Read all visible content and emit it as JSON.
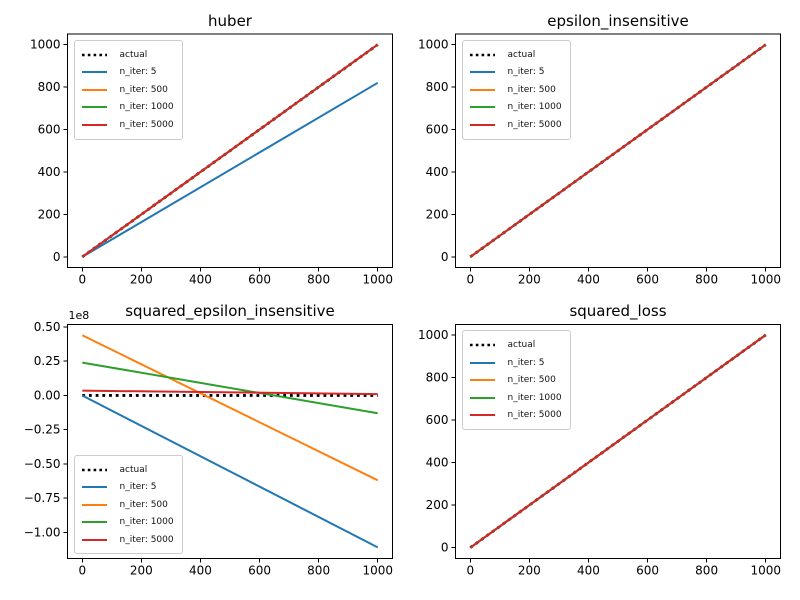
{
  "figure": {
    "background": "#ffffff"
  },
  "chart_data": [
    {
      "type": "line",
      "title": "huber",
      "xlim": [
        -50,
        1050
      ],
      "ylim": [
        -50,
        1050
      ],
      "xticks": [
        0,
        200,
        400,
        600,
        800,
        1000
      ],
      "xtick_labels": [
        "0",
        "200",
        "400",
        "600",
        "800",
        "1000"
      ],
      "yticks": [
        0,
        200,
        400,
        600,
        800,
        1000
      ],
      "ytick_labels": [
        "0",
        "200",
        "400",
        "600",
        "800",
        "1000"
      ],
      "offset_label": "",
      "legend": {
        "position": "upper-left"
      },
      "series": [
        {
          "name": "actual",
          "color": "#000000",
          "line_style": "dotted",
          "x": [
            0,
            1000
          ],
          "y": [
            0,
            1000
          ]
        },
        {
          "name": "n_iter: 5",
          "color": "#1f77b4",
          "line_style": "solid",
          "x": [
            0,
            1000
          ],
          "y": [
            0,
            820
          ]
        },
        {
          "name": "n_iter: 500",
          "color": "#ff7f0e",
          "line_style": "solid",
          "x": [
            0,
            1000
          ],
          "y": [
            0,
            1000
          ]
        },
        {
          "name": "n_iter: 1000",
          "color": "#2ca02c",
          "line_style": "solid",
          "x": [
            0,
            1000
          ],
          "y": [
            0,
            1000
          ]
        },
        {
          "name": "n_iter: 5000",
          "color": "#d62728",
          "line_style": "solid",
          "x": [
            0,
            1000
          ],
          "y": [
            0,
            1000
          ]
        }
      ]
    },
    {
      "type": "line",
      "title": "epsilon_insensitive",
      "xlim": [
        -50,
        1050
      ],
      "ylim": [
        -50,
        1050
      ],
      "xticks": [
        0,
        200,
        400,
        600,
        800,
        1000
      ],
      "xtick_labels": [
        "0",
        "200",
        "400",
        "600",
        "800",
        "1000"
      ],
      "yticks": [
        0,
        200,
        400,
        600,
        800,
        1000
      ],
      "ytick_labels": [
        "0",
        "200",
        "400",
        "600",
        "800",
        "1000"
      ],
      "offset_label": "",
      "legend": {
        "position": "upper-left"
      },
      "series": [
        {
          "name": "actual",
          "color": "#000000",
          "line_style": "dotted",
          "x": [
            0,
            1000
          ],
          "y": [
            0,
            1000
          ]
        },
        {
          "name": "n_iter: 5",
          "color": "#1f77b4",
          "line_style": "solid",
          "x": [
            0,
            1000
          ],
          "y": [
            0,
            1000
          ]
        },
        {
          "name": "n_iter: 500",
          "color": "#ff7f0e",
          "line_style": "solid",
          "x": [
            0,
            1000
          ],
          "y": [
            0,
            1000
          ]
        },
        {
          "name": "n_iter: 1000",
          "color": "#2ca02c",
          "line_style": "solid",
          "x": [
            0,
            1000
          ],
          "y": [
            0,
            1000
          ]
        },
        {
          "name": "n_iter: 5000",
          "color": "#d62728",
          "line_style": "solid",
          "x": [
            0,
            1000
          ],
          "y": [
            0,
            1000
          ]
        }
      ]
    },
    {
      "type": "line",
      "title": "squared_epsilon_insensitive",
      "y_scale_note": "y values in units of 1e8",
      "xlim": [
        -50,
        1050
      ],
      "ylim": [
        -1.19,
        0.52
      ],
      "xticks": [
        0,
        200,
        400,
        600,
        800,
        1000
      ],
      "xtick_labels": [
        "0",
        "200",
        "400",
        "600",
        "800",
        "1000"
      ],
      "yticks": [
        0.5,
        0.25,
        0,
        -0.25,
        -0.5,
        -0.75,
        -1.0
      ],
      "ytick_labels": [
        "0.50",
        "0.25",
        "0.00",
        "−0.25",
        "−0.50",
        "−0.75",
        "−1.00"
      ],
      "offset_label": "1e8",
      "legend": {
        "position": "lower-left"
      },
      "series": [
        {
          "name": "actual",
          "color": "#000000",
          "line_style": "dotted",
          "x": [
            0,
            1000
          ],
          "y": [
            0,
            1e-05
          ]
        },
        {
          "name": "n_iter: 5",
          "color": "#1f77b4",
          "line_style": "solid",
          "x": [
            0,
            1000
          ],
          "y": [
            0.0,
            -1.11
          ]
        },
        {
          "name": "n_iter: 500",
          "color": "#ff7f0e",
          "line_style": "solid",
          "x": [
            0,
            1000
          ],
          "y": [
            0.44,
            -0.62
          ]
        },
        {
          "name": "n_iter: 1000",
          "color": "#2ca02c",
          "line_style": "solid",
          "x": [
            0,
            1000
          ],
          "y": [
            0.24,
            -0.13
          ]
        },
        {
          "name": "n_iter: 5000",
          "color": "#d62728",
          "line_style": "solid",
          "x": [
            0,
            1000
          ],
          "y": [
            0.035,
            0.01
          ]
        }
      ]
    },
    {
      "type": "line",
      "title": "squared_loss",
      "xlim": [
        -50,
        1050
      ],
      "ylim": [
        -50,
        1050
      ],
      "xticks": [
        0,
        200,
        400,
        600,
        800,
        1000
      ],
      "xtick_labels": [
        "0",
        "200",
        "400",
        "600",
        "800",
        "1000"
      ],
      "yticks": [
        0,
        200,
        400,
        600,
        800,
        1000
      ],
      "ytick_labels": [
        "0",
        "200",
        "400",
        "600",
        "800",
        "1000"
      ],
      "offset_label": "",
      "legend": {
        "position": "upper-left"
      },
      "series": [
        {
          "name": "actual",
          "color": "#000000",
          "line_style": "dotted",
          "x": [
            0,
            1000
          ],
          "y": [
            0,
            1000
          ]
        },
        {
          "name": "n_iter: 5",
          "color": "#1f77b4",
          "line_style": "solid",
          "x": [
            0,
            1000
          ],
          "y": [
            0,
            1000
          ]
        },
        {
          "name": "n_iter: 500",
          "color": "#ff7f0e",
          "line_style": "solid",
          "x": [
            0,
            1000
          ],
          "y": [
            0,
            1000
          ]
        },
        {
          "name": "n_iter: 1000",
          "color": "#2ca02c",
          "line_style": "solid",
          "x": [
            0,
            1000
          ],
          "y": [
            0,
            1000
          ]
        },
        {
          "name": "n_iter: 5000",
          "color": "#d62728",
          "line_style": "solid",
          "x": [
            0,
            1000
          ],
          "y": [
            0,
            1000
          ]
        }
      ]
    }
  ]
}
